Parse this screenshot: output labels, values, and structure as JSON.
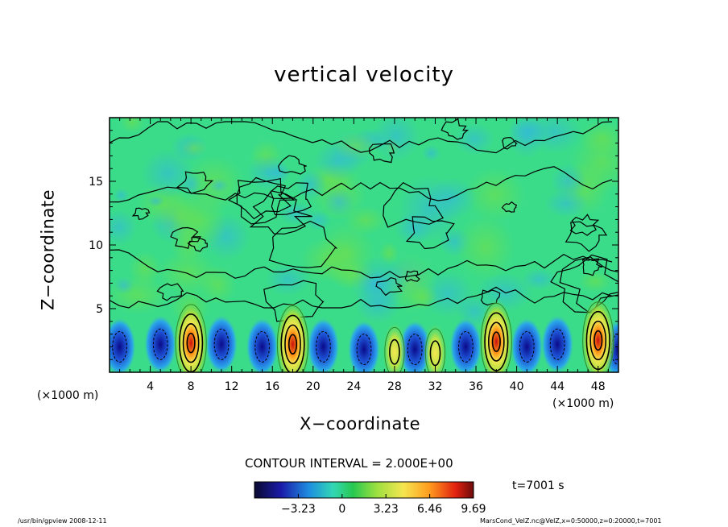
{
  "chart_data": {
    "type": "heatmap",
    "title": "vertical velocity",
    "xlabel": "X−coordinate",
    "ylabel": "Z−coordinate",
    "x_unit_label": "(×1000 m)",
    "xlim": [
      0,
      50
    ],
    "ylim": [
      0,
      20
    ],
    "x_ticks": [
      4,
      8,
      12,
      16,
      20,
      24,
      28,
      32,
      36,
      40,
      44,
      48
    ],
    "y_ticks": [
      5,
      10,
      15
    ],
    "contour_interval": "CONTOUR INTERVAL = 2.000E+00",
    "colorbar_ticks": [
      "−3.23",
      "0",
      "3.23",
      "6.46",
      "9.69"
    ],
    "colorbar_range": [
      -6.46,
      9.69
    ],
    "time": "t=7001 s",
    "updraft_cells": [
      {
        "x": 8,
        "z": 2.3,
        "peak": 8
      },
      {
        "x": 18,
        "z": 2.2,
        "peak": 11
      },
      {
        "x": 28,
        "z": 1.6,
        "peak": 6
      },
      {
        "x": 32,
        "z": 1.5,
        "peak": 6
      },
      {
        "x": 38,
        "z": 2.4,
        "peak": 8
      },
      {
        "x": 48,
        "z": 2.5,
        "peak": 8
      }
    ],
    "downdraft_cells": [
      {
        "x": 1,
        "z": 2.0
      },
      {
        "x": 5,
        "z": 2.2
      },
      {
        "x": 11,
        "z": 2.2
      },
      {
        "x": 15,
        "z": 2.0
      },
      {
        "x": 21,
        "z": 2.0
      },
      {
        "x": 25,
        "z": 1.8
      },
      {
        "x": 30,
        "z": 1.8
      },
      {
        "x": 35,
        "z": 2.0
      },
      {
        "x": 41,
        "z": 2.0
      },
      {
        "x": 44,
        "z": 2.2
      },
      {
        "x": 50,
        "z": 1.8
      }
    ],
    "colors": {
      "positive": "#ff2a00",
      "negative": "#0a0a8a",
      "neutral": "#33e07a"
    }
  },
  "footer": {
    "left": "/usr/bin/gpview   2008-12-11",
    "right": "MarsCond_VelZ.nc@VelZ,x=0:50000,z=0:20000,t=7001"
  }
}
